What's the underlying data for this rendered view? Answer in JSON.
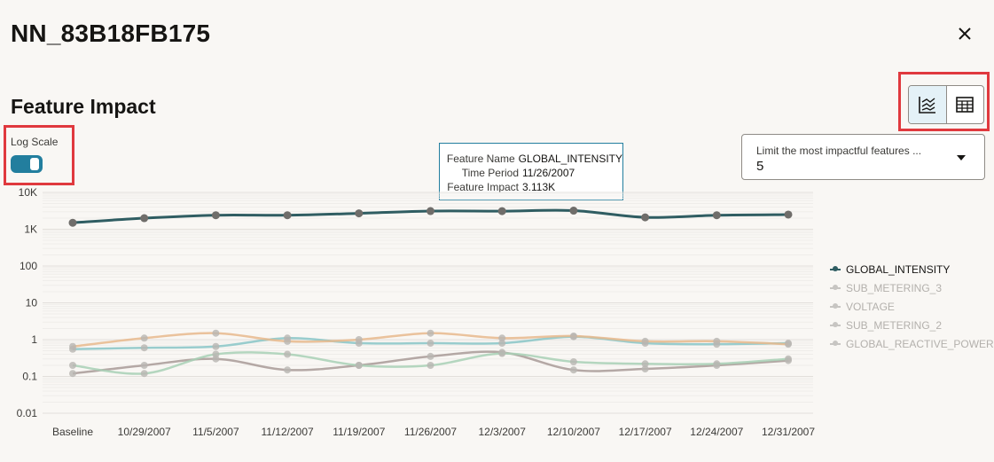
{
  "header": {
    "title": "NN_83B18FB175"
  },
  "section": {
    "title": "Feature Impact"
  },
  "log_scale": {
    "label": "Log Scale",
    "enabled": true
  },
  "view_toggle": {
    "options": [
      "chart-icon",
      "table-icon"
    ],
    "active": "chart-icon"
  },
  "limit_select": {
    "label": "Limit the most impactful features ...",
    "value": "5"
  },
  "tooltip": {
    "rows": [
      {
        "key": "Feature Name",
        "value": "GLOBAL_INTENSITY"
      },
      {
        "key": "Time Period",
        "value": "11/26/2007"
      },
      {
        "key": "Feature Impact",
        "value": "3.113K"
      }
    ]
  },
  "colors": {
    "accent": "#227e9e",
    "highlight": "#e0393e"
  },
  "chart_data": {
    "type": "line",
    "yscale": "log",
    "ylim": [
      0.01,
      10000
    ],
    "yticks": [
      "0.01",
      "0.1",
      "1",
      "10",
      "100",
      "1K",
      "10K"
    ],
    "categories": [
      "Baseline",
      "10/29/2007",
      "11/5/2007",
      "11/12/2007",
      "11/19/2007",
      "11/26/2007",
      "12/3/2007",
      "12/10/2007",
      "12/17/2007",
      "12/24/2007",
      "12/31/2007"
    ],
    "series": [
      {
        "name": "GLOBAL_INTENSITY",
        "color": "#2f5d62",
        "values": [
          1500,
          2000,
          2400,
          2400,
          2700,
          3113,
          3100,
          3200,
          2100,
          2400,
          2500
        ]
      },
      {
        "name": "SUB_METERING_3",
        "color": "#88c6c7",
        "values": [
          0.55,
          0.6,
          0.65,
          1.1,
          0.8,
          0.8,
          0.8,
          1.2,
          0.8,
          0.75,
          0.8
        ]
      },
      {
        "name": "VOLTAGE",
        "color": "#e8b98c",
        "values": [
          0.65,
          1.1,
          1.5,
          0.9,
          1.0,
          1.5,
          1.1,
          1.25,
          0.9,
          0.9,
          0.75
        ]
      },
      {
        "name": "SUB_METERING_2",
        "color": "#a89a97",
        "values": [
          0.12,
          0.2,
          0.3,
          0.15,
          0.2,
          0.35,
          0.45,
          0.15,
          0.16,
          0.2,
          0.27
        ]
      },
      {
        "name": "GLOBAL_REACTIVE_POWER",
        "color": "#a8d0b5",
        "values": [
          0.2,
          0.12,
          0.4,
          0.4,
          0.2,
          0.2,
          0.42,
          0.25,
          0.22,
          0.22,
          0.3
        ]
      }
    ],
    "legend": {
      "position": "right",
      "items": [
        {
          "name": "GLOBAL_INTENSITY",
          "active": true
        },
        {
          "name": "SUB_METERING_3",
          "active": false
        },
        {
          "name": "VOLTAGE",
          "active": false
        },
        {
          "name": "SUB_METERING_2",
          "active": false
        },
        {
          "name": "GLOBAL_REACTIVE_POWER",
          "active": false
        }
      ]
    }
  }
}
